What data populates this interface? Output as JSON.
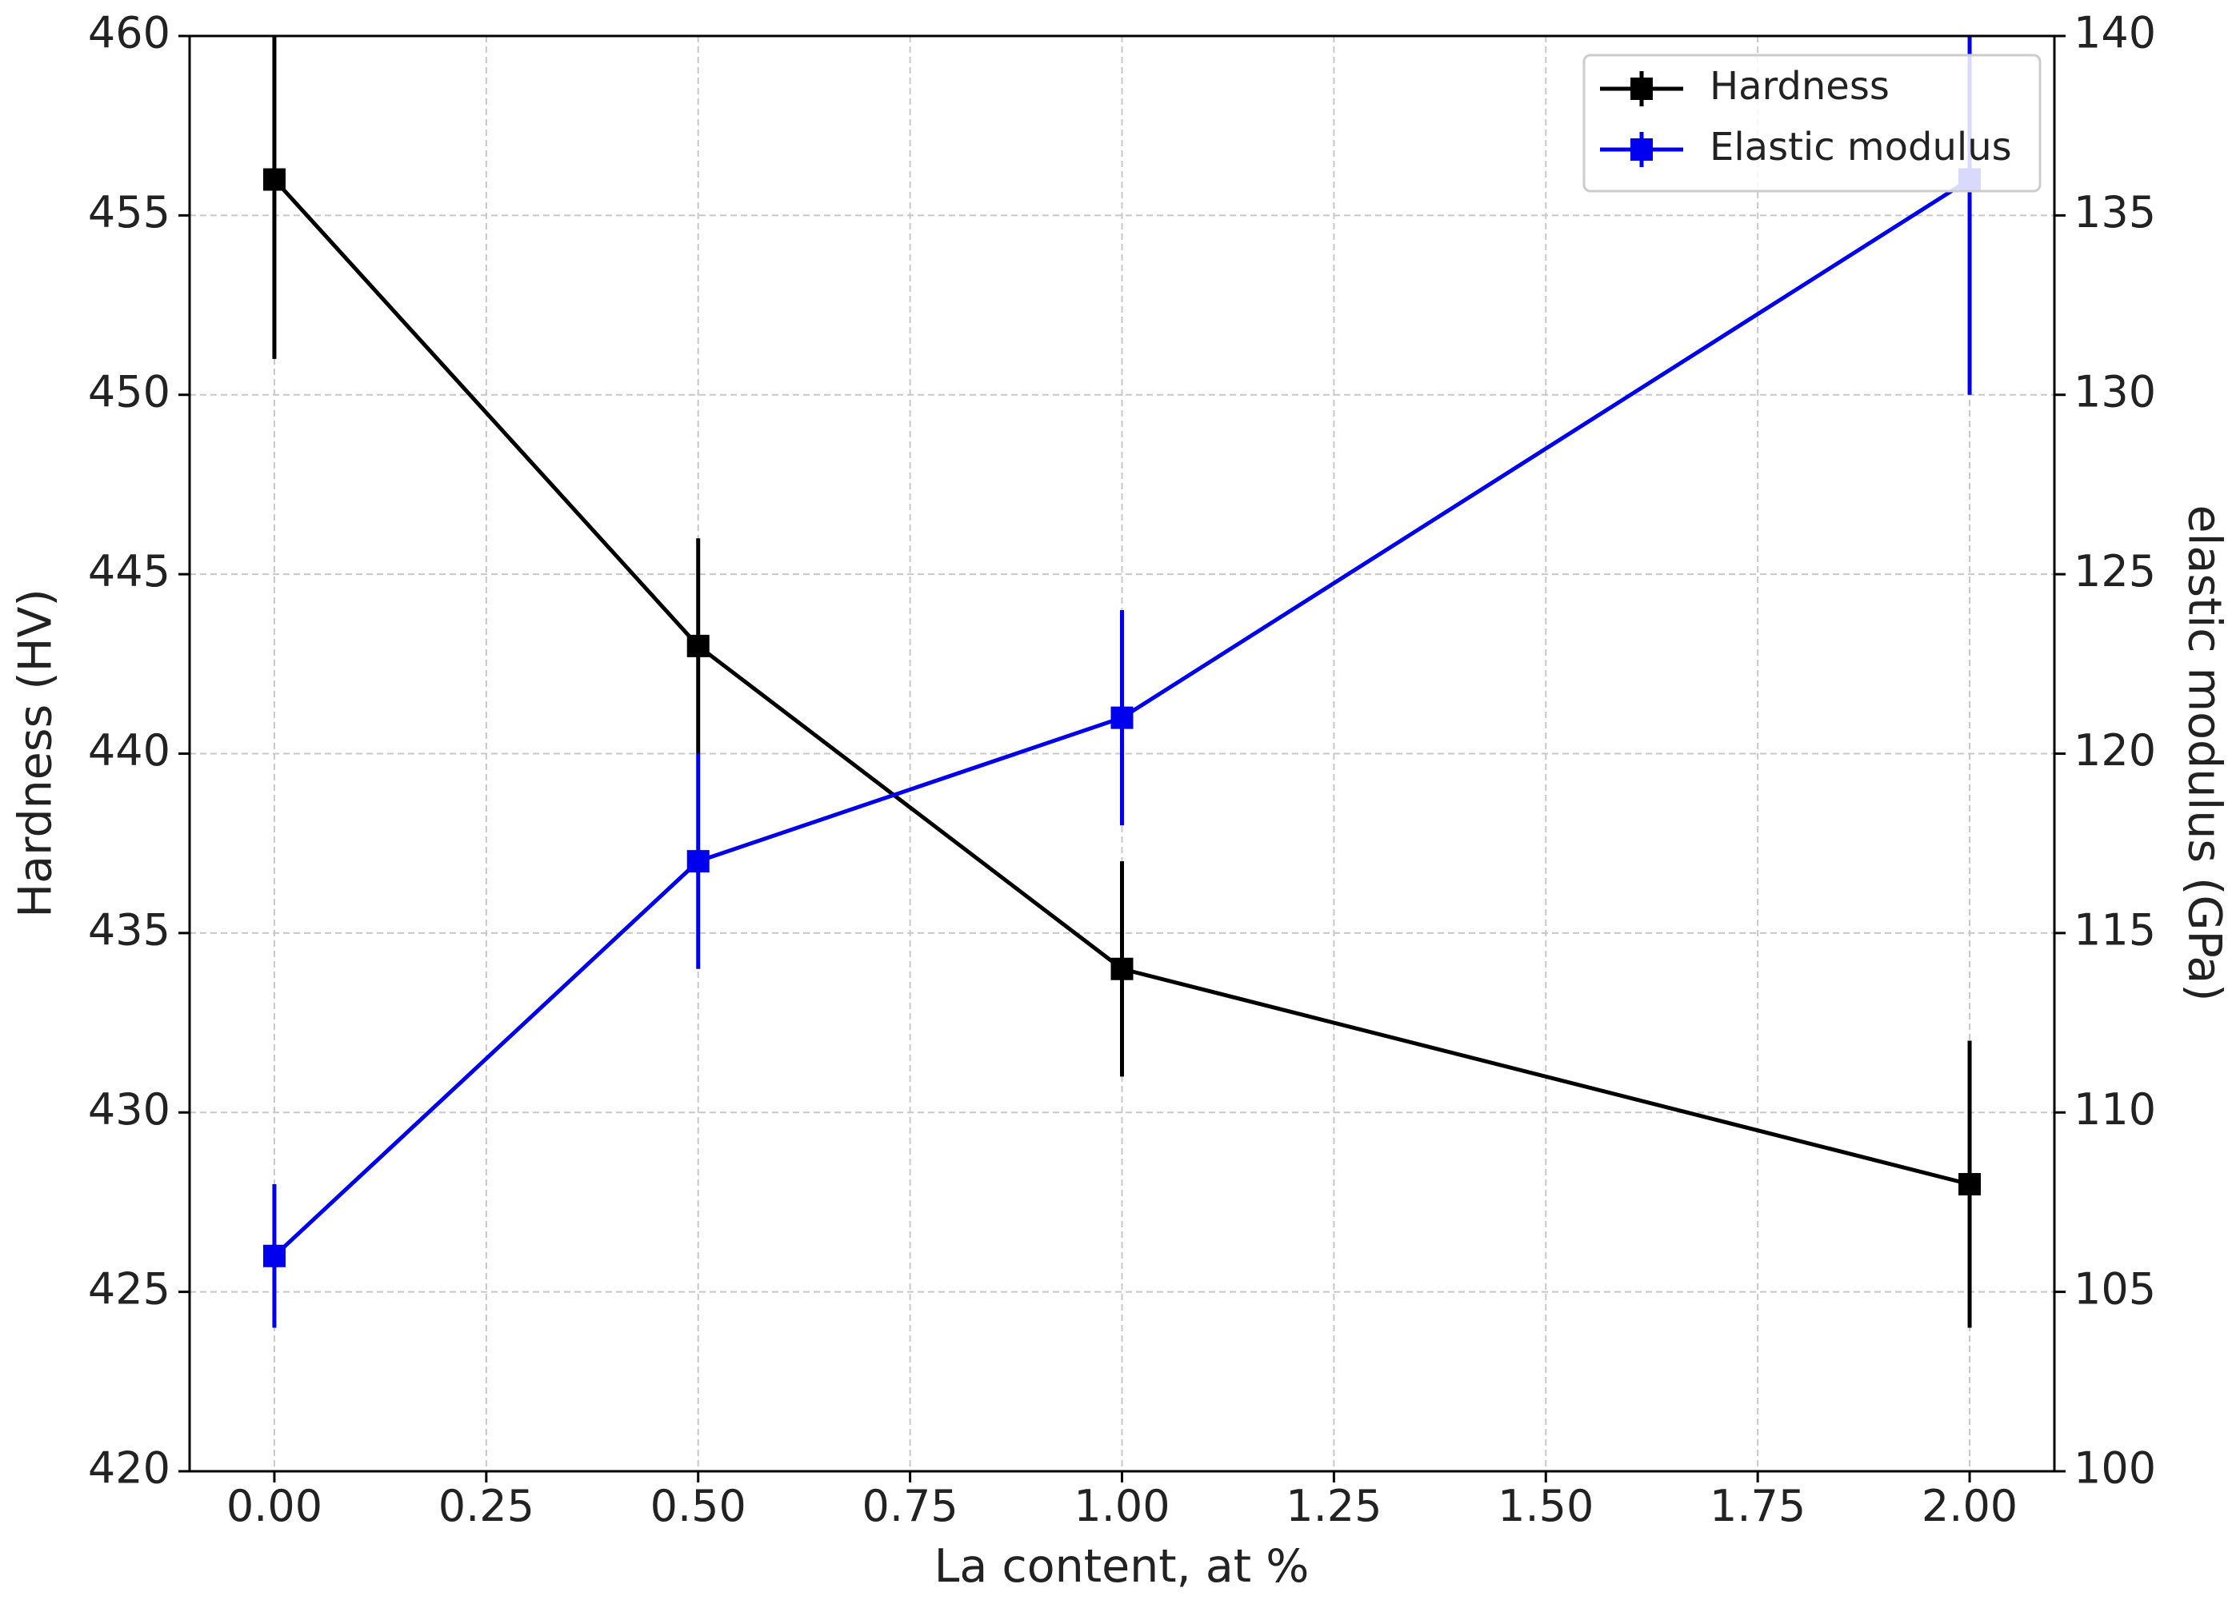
{
  "chart_data": {
    "type": "line",
    "x_label": "La content, at %",
    "y_label": "Hardness (HV)",
    "y2_label": "elastic modulus (GPa)",
    "y2_label_color": "#0000ee",
    "x": [
      0,
      0.5,
      1.0,
      2.0
    ],
    "series": [
      {
        "name": "Hardness",
        "color": "#000000",
        "values": [
          456,
          443,
          434,
          428
        ],
        "errors": [
          5,
          3,
          3,
          4
        ]
      },
      {
        "name": "Elastic modulus",
        "color": "#0000ee",
        "values": [
          106,
          117,
          121,
          136
        ],
        "errors": [
          2,
          3,
          3,
          6
        ],
        "axis": "y2"
      }
    ],
    "xlim": [
      -0.1,
      2.1
    ],
    "xticks": [
      {
        "value": 0,
        "label": "0.00"
      },
      {
        "value": 0.25,
        "label": "0.25"
      },
      {
        "value": 0.5,
        "label": "0.50"
      },
      {
        "value": 0.75,
        "label": "0.75"
      },
      {
        "value": 1,
        "label": "1.00"
      },
      {
        "value": 1.25,
        "label": "1.25"
      },
      {
        "value": 1.5,
        "label": "1.50"
      },
      {
        "value": 1.75,
        "label": "1.75"
      },
      {
        "value": 2,
        "label": "2.00"
      }
    ],
    "ylim": [
      420,
      460
    ],
    "yticks": [
      420,
      425,
      430,
      435,
      440,
      445,
      450,
      455,
      460
    ],
    "y2lim": [
      100,
      140
    ],
    "y2ticks": [
      100,
      105,
      110,
      115,
      120,
      125,
      130,
      135,
      140
    ],
    "grid": true,
    "legend": "upper right"
  }
}
